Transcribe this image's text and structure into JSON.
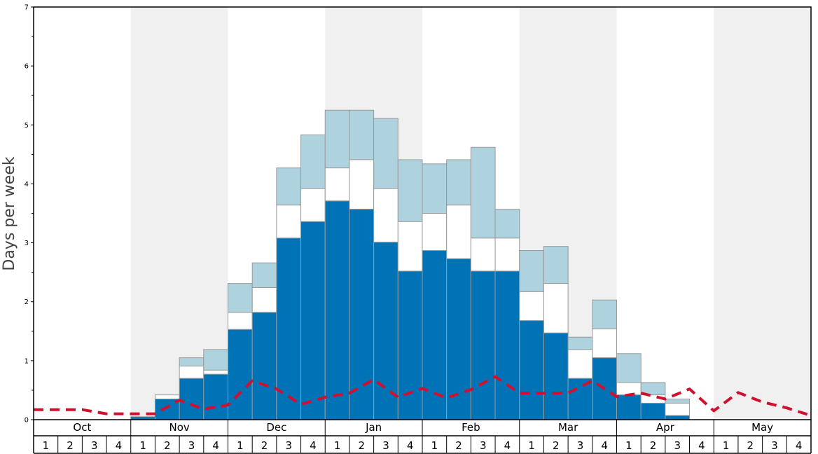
{
  "chart_data": {
    "type": "bar",
    "ylabel": "Days per week",
    "ylim": [
      0,
      7
    ],
    "y_ticks": [
      0,
      1,
      2,
      3,
      4,
      5,
      6,
      7
    ],
    "months": [
      "Oct",
      "Nov",
      "Dec",
      "Jan",
      "Feb",
      "Mar",
      "Apr",
      "May"
    ],
    "week_labels": [
      "1",
      "2",
      "3",
      "4"
    ],
    "shaded_months": [
      "Nov",
      "Jan",
      "Mar",
      "May"
    ],
    "colors": {
      "dark_segment": "#0073b6",
      "white_segment": "#ffffff",
      "light_segment": "#aed3df",
      "line": "#d0102e",
      "band": "#f0f0f0",
      "bar_border": "#999999"
    },
    "stack_levels": {
      "dark_top": [
        0,
        0,
        0,
        0,
        0.05,
        0.35,
        0.7,
        0.77,
        1.53,
        1.82,
        3.08,
        3.36,
        3.71,
        3.57,
        3.01,
        2.52,
        2.87,
        2.73,
        2.52,
        2.52,
        1.68,
        1.47,
        0.7,
        1.05,
        0.42,
        0.28,
        0.07,
        0,
        0,
        0,
        0,
        0
      ],
      "white_top": [
        0,
        0,
        0,
        0,
        0.05,
        0.42,
        0.91,
        0.84,
        1.82,
        2.24,
        3.64,
        3.92,
        4.27,
        4.41,
        3.92,
        3.36,
        3.5,
        3.64,
        3.08,
        3.08,
        2.17,
        2.31,
        1.19,
        1.54,
        0.63,
        0.42,
        0.28,
        0,
        0,
        0,
        0,
        0
      ],
      "light_top": [
        0,
        0,
        0,
        0,
        0.05,
        0.42,
        1.05,
        1.19,
        2.31,
        2.66,
        4.27,
        4.83,
        5.25,
        5.25,
        5.11,
        4.41,
        4.34,
        4.41,
        4.62,
        3.57,
        2.87,
        2.94,
        1.4,
        2.03,
        1.12,
        0.63,
        0.35,
        0,
        0,
        0,
        0,
        0
      ]
    },
    "line_values": [
      0.17,
      0.17,
      0.17,
      0.1,
      0.1,
      0.1,
      0.33,
      0.18,
      0.25,
      0.66,
      0.52,
      0.26,
      0.38,
      0.45,
      0.68,
      0.38,
      0.53,
      0.37,
      0.51,
      0.73,
      0.45,
      0.45,
      0.45,
      0.66,
      0.39,
      0.45,
      0.35,
      0.52,
      0.15,
      0.46,
      0.3,
      0.2,
      0.07
    ]
  }
}
